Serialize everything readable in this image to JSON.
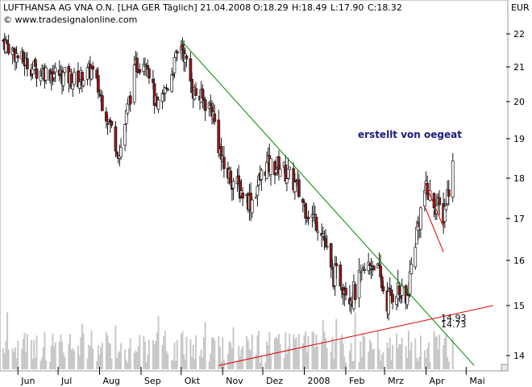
{
  "header": {
    "title": "LUFTHANSA AG VNA O.N. [LHA GER  Täglich] 21.04.2008",
    "open": "O:18.29",
    "high": "H:18.49",
    "low": "L:17.90",
    "close": "C:18.32",
    "copyright": "© www.tradesignalonline.com",
    "currency": "EUR"
  },
  "annotations": {
    "author_note": "erstellt von oegeat",
    "value_upper": "14.93",
    "value_lower": "14.73"
  },
  "colors": {
    "open": "#009900",
    "close": "#009900",
    "green_trendline": "#008800",
    "red_trendline": "#e00000",
    "candle": "#1a1a1a",
    "candle_down_fill": "#8b1a1a",
    "volume": "#c8c8c8",
    "annotation": "#1a1a7a"
  },
  "chart_data": {
    "type": "candlestick",
    "x_tick_labels": [
      "Jun",
      "Jul",
      "Aug",
      "Sep",
      "Okt",
      "Nov",
      "Dez",
      "2008",
      "Feb",
      "Mrz",
      "Apr",
      "Mai"
    ],
    "y_tick_labels": [
      "14",
      "15",
      "16",
      "17",
      "18",
      "19",
      "20",
      "21",
      "22"
    ],
    "ylim": [
      13.8,
      22.3
    ],
    "approx_close_path": [
      [
        "2007-05-21",
        21.8
      ],
      [
        "2007-06-01",
        21.3
      ],
      [
        "2007-06-15",
        20.9
      ],
      [
        "2007-07-01",
        20.8
      ],
      [
        "2007-07-15",
        20.6
      ],
      [
        "2007-07-26",
        20.9
      ],
      [
        "2007-08-06",
        19.7
      ],
      [
        "2007-08-16",
        18.6
      ],
      [
        "2007-08-28",
        21.0
      ],
      [
        "2007-09-05",
        21.3
      ],
      [
        "2007-09-13",
        19.7
      ],
      [
        "2007-09-21",
        20.5
      ],
      [
        "2007-10-01",
        21.7
      ],
      [
        "2007-10-10",
        20.3
      ],
      [
        "2007-10-24",
        19.8
      ],
      [
        "2007-11-01",
        18.3
      ],
      [
        "2007-11-12",
        17.8
      ],
      [
        "2007-11-22",
        17.4
      ],
      [
        "2007-12-03",
        18.3
      ],
      [
        "2007-12-14",
        18.3
      ],
      [
        "2007-12-24",
        17.9
      ],
      [
        "2008-01-03",
        17.2
      ],
      [
        "2008-01-14",
        16.8
      ],
      [
        "2008-01-21",
        15.7
      ],
      [
        "2008-01-28",
        15.6
      ],
      [
        "2008-02-06",
        15.2
      ],
      [
        "2008-02-14",
        15.7
      ],
      [
        "2008-02-22",
        16.0
      ],
      [
        "2008-03-03",
        15.1
      ],
      [
        "2008-03-10",
        15.4
      ],
      [
        "2008-03-17",
        15.0
      ],
      [
        "2008-03-24",
        16.5
      ],
      [
        "2008-03-31",
        17.7
      ],
      [
        "2008-04-07",
        17.4
      ],
      [
        "2008-04-14",
        17.1
      ],
      [
        "2008-04-18",
        17.8
      ],
      [
        "2008-04-21",
        18.3
      ]
    ],
    "trendlines": [
      {
        "color": "green",
        "from": [
          "2007-10-01",
          21.8
        ],
        "to": [
          "2008-05-07",
          13.8
        ]
      },
      {
        "color": "red",
        "from": [
          "2007-10-29",
          13.8
        ],
        "to": [
          "2008-05-21",
          15.0
        ]
      }
    ],
    "channel": {
      "color": "red",
      "from": [
        "2008-03-31",
        17.9
      ],
      "to": [
        "2008-04-14",
        16.8
      ]
    }
  }
}
